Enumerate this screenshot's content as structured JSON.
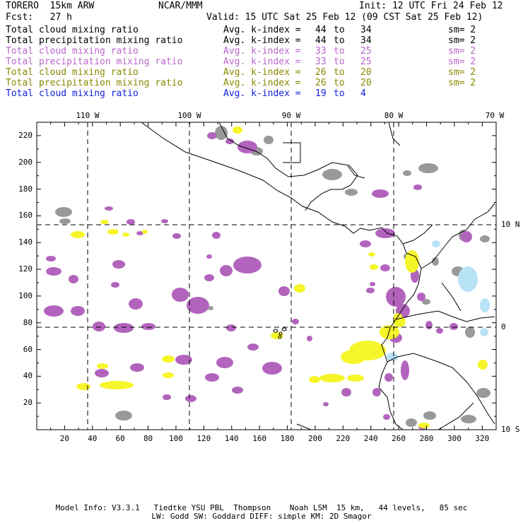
{
  "header": {
    "model": "TORERO  15km ARW",
    "org": "NCAR/MMM",
    "init": "Init: 12 UTC Fri 24 Feb 12",
    "fcst": "Fcst:   27 h",
    "valid": "Valid: 15 UTC Sat 25 Feb 12 (09 CST Sat 25 Feb 12)"
  },
  "legend": [
    {
      "field": "Total cloud mixing ratio",
      "idx": "Avg. k-index =",
      "hi": "44",
      "to": "to",
      "lo": "34",
      "sm": "sm= 2",
      "color": "#000000"
    },
    {
      "field": "Total precipitation mixing ratio",
      "idx": "Avg. k-index =",
      "hi": "44",
      "to": "to",
      "lo": "34",
      "sm": "sm= 2",
      "color": "#000000"
    },
    {
      "field": "Total cloud mixing ratio",
      "idx": "Avg. k-index =",
      "hi": "33",
      "to": "to",
      "lo": "25",
      "sm": "sm= 2",
      "color": "#bb66cc"
    },
    {
      "field": "Total precipitation mixing ratio",
      "idx": "Avg. k-index =",
      "hi": "33",
      "to": "to",
      "lo": "25",
      "sm": "sm= 2",
      "color": "#bb66cc"
    },
    {
      "field": "Total cloud mixing ratio",
      "idx": "Avg. k-index =",
      "hi": "26",
      "to": "to",
      "lo": "20",
      "sm": "sm= 2",
      "color": "#888800"
    },
    {
      "field": "Total precipitation mixing ratio",
      "idx": "Avg. k-index =",
      "hi": "26",
      "to": "to",
      "lo": "20",
      "sm": "sm= 2",
      "color": "#888800"
    },
    {
      "field": "Total cloud mixing ratio",
      "idx": "Avg. k-index =",
      "hi": "19",
      "to": "to",
      "lo": "4",
      "sm": "",
      "color": "#1122dd"
    }
  ],
  "map": {
    "top_lon_labels": [
      "110 W",
      "100 W",
      "90 W",
      "80 W",
      "70 W"
    ],
    "right_lat_labels": [
      "10 N",
      "0",
      "10 S"
    ],
    "y_ticks": [
      "220",
      "200",
      "180",
      "160",
      "140",
      "120",
      "100",
      "80",
      "60",
      "40",
      "20"
    ],
    "x_ticks": [
      "20",
      "40",
      "60",
      "80",
      "100",
      "120",
      "140",
      "160",
      "180",
      "200",
      "220",
      "240",
      "260",
      "280",
      "300",
      "320"
    ],
    "colors": {
      "gray": "#999999",
      "purple": "#b264bd",
      "yellow": "#f5f52a",
      "lightblue": "#b8e2f5",
      "coast": "#000000",
      "grid": "#000000"
    }
  },
  "footer": {
    "line1": "Model Info: V3.3.1   Tiedtke YSU PBL  Thompson    Noah LSM  15 km,   44 levels,   85 sec",
    "line2": "LW: Godd SW: Goddard DIFF: simple KM: 2D Smagor"
  }
}
